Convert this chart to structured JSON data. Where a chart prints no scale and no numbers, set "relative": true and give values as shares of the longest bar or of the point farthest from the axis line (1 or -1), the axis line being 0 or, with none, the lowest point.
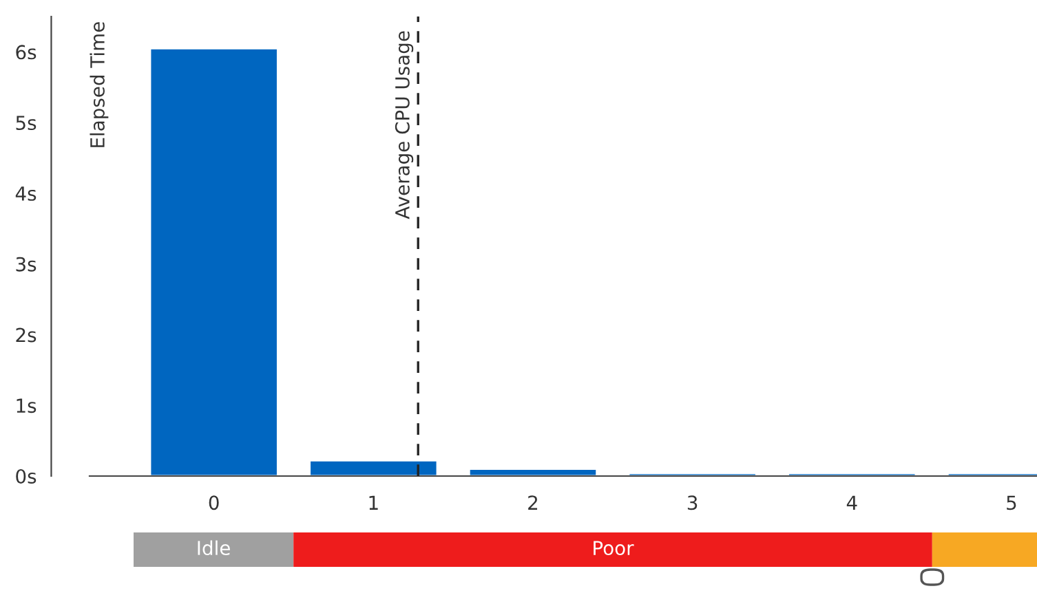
{
  "chart_data": [
    {
      "type": "bar",
      "ylabel": "Elapsed Time",
      "x": [
        0,
        1,
        2,
        3,
        4,
        5
      ],
      "values": [
        6.05,
        0.22,
        0.1,
        0.04,
        0.04,
        0.04
      ],
      "color": "#0066c0",
      "xlim": [
        -0.78,
        5.16
      ],
      "xticks": [
        0,
        1,
        2,
        3,
        4,
        5
      ],
      "ylim": [
        0,
        6.5
      ],
      "yticks": [
        {
          "value": 0,
          "label": "0s"
        },
        {
          "value": 1,
          "label": "1s"
        },
        {
          "value": 2,
          "label": "2s"
        },
        {
          "value": 3,
          "label": "3s"
        },
        {
          "value": 4,
          "label": "4s"
        },
        {
          "value": 5,
          "label": "5s"
        },
        {
          "value": 6,
          "label": "6s"
        }
      ],
      "ref_lines": [
        {
          "axis": "x",
          "value": 1.28,
          "label": "Average CPU Usage",
          "color": "#222222",
          "line_style": "dashed"
        }
      ],
      "grid": false
    },
    {
      "type": "bar",
      "orientation": "horizontal",
      "stacked": true,
      "relative": true,
      "categories": [
        null
      ],
      "tick_labels": false,
      "series": [
        {
          "name": "Idle",
          "color": "#a0a0a0",
          "values": [
            0.177
          ]
        },
        {
          "name": "Poor",
          "color": "#ee1c1c",
          "values": [
            0.707
          ]
        },
        {
          "color": "#f7a823",
          "values": [
            0.116
          ]
        }
      ]
    }
  ]
}
